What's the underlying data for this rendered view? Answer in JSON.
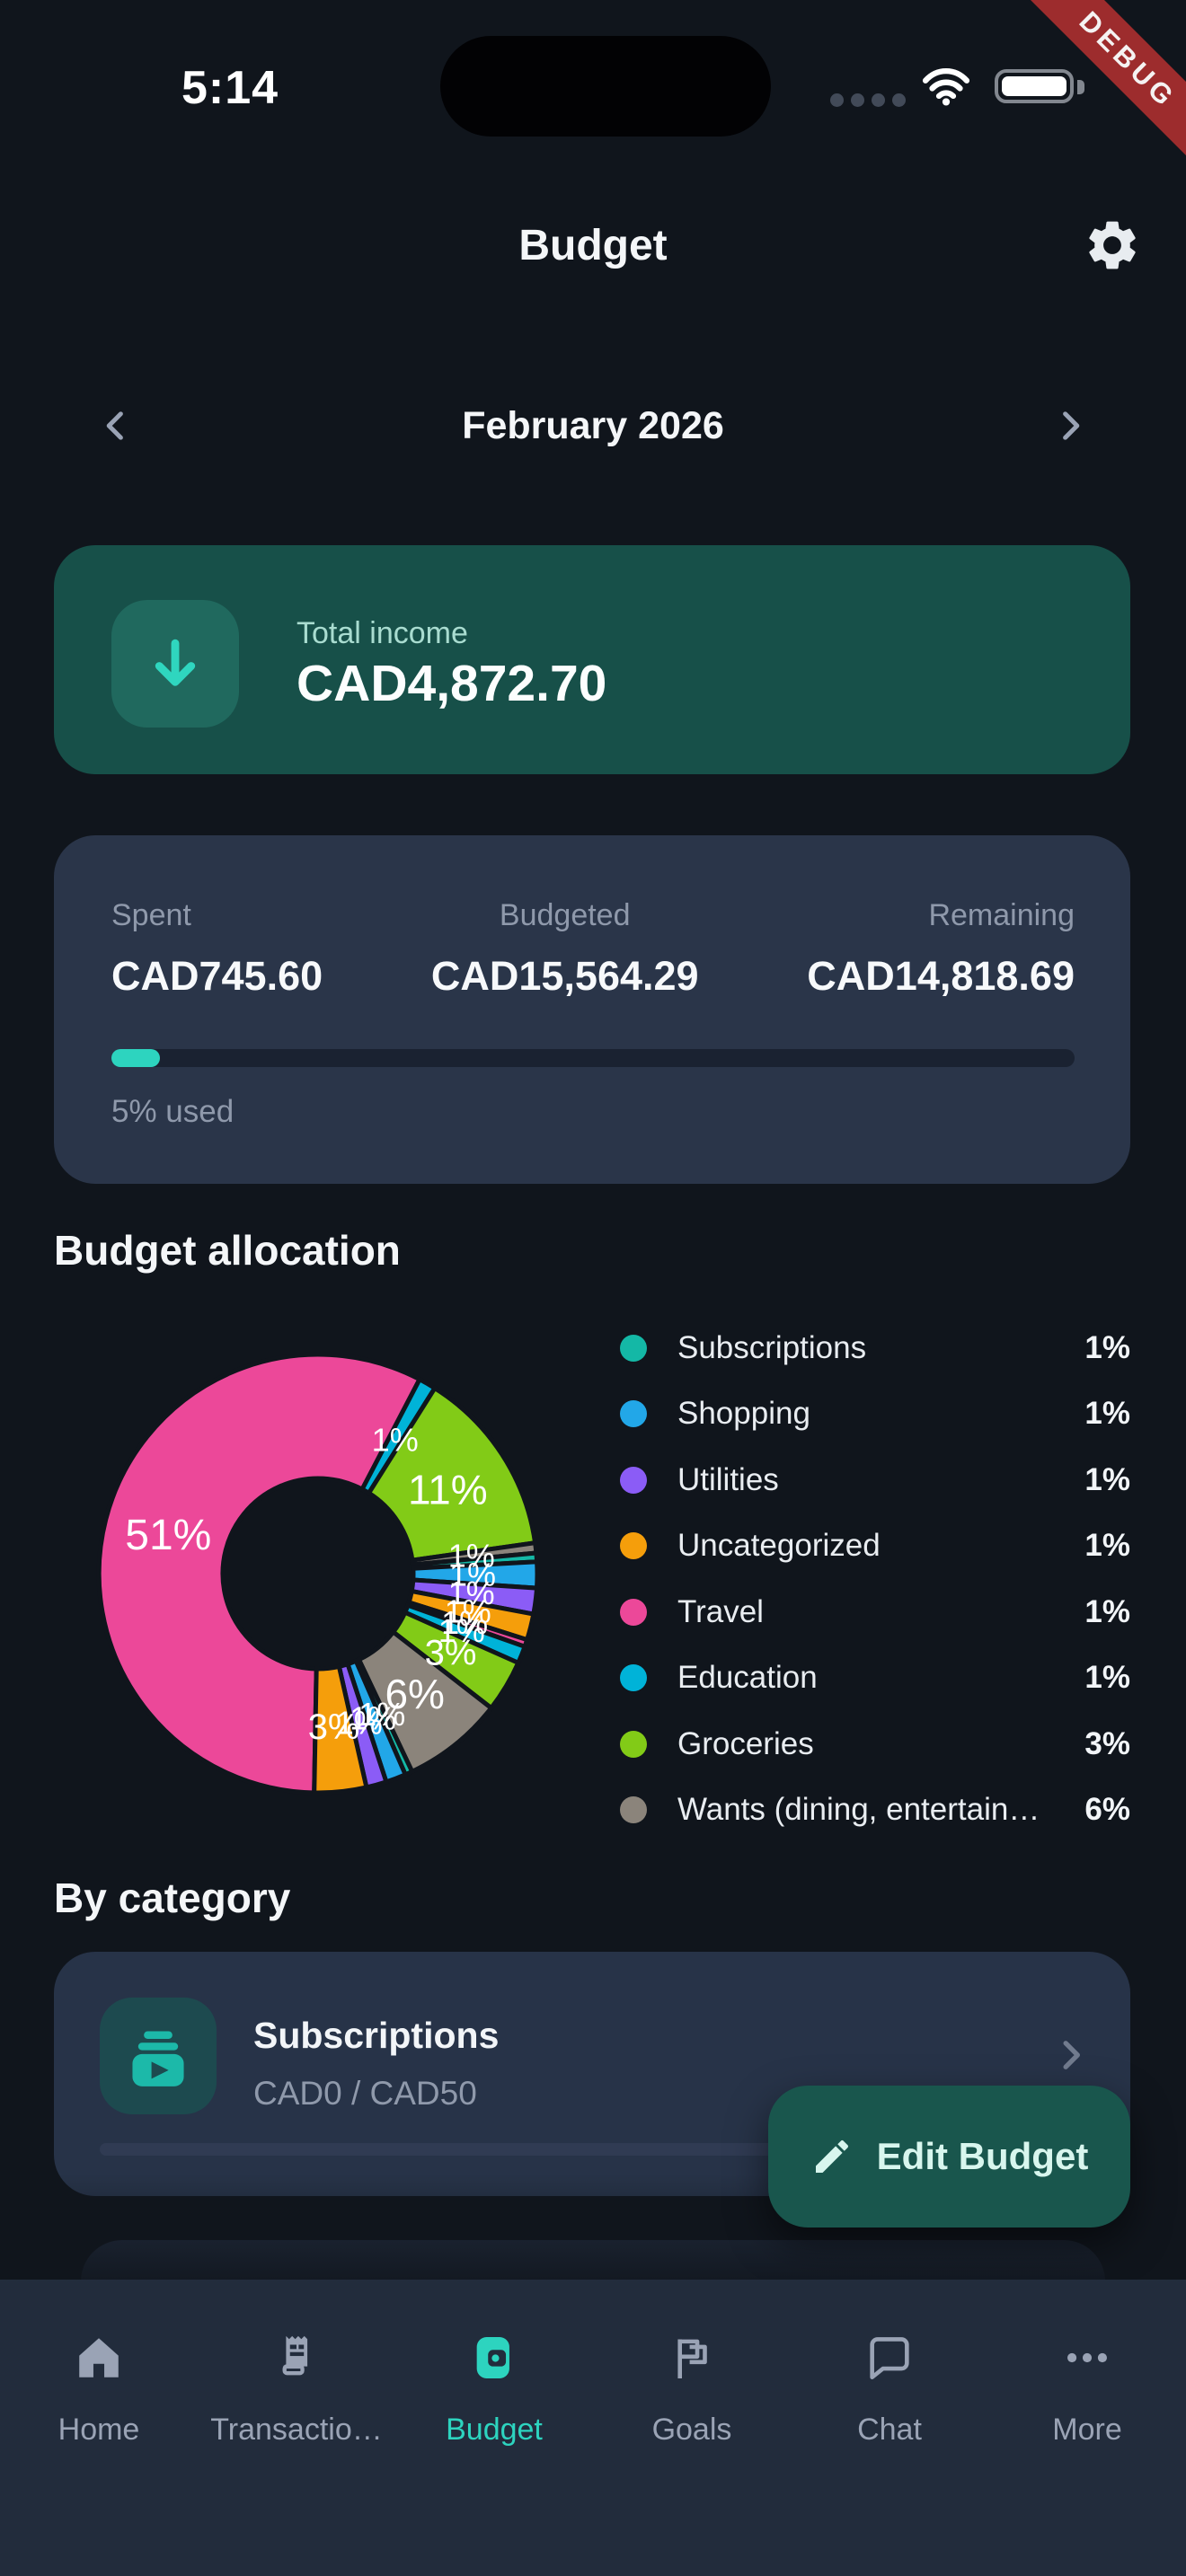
{
  "status_bar": {
    "time": "5:14",
    "cellular_icon": "cellular-signal-dots",
    "wifi_icon": "wifi-icon",
    "battery_icon": "battery-full",
    "debug_ribbon": "DEBUG"
  },
  "header": {
    "title": "Budget",
    "settings_icon": "gear-icon"
  },
  "month_nav": {
    "label": "February 2026",
    "prev_icon": "chevron-left",
    "next_icon": "chevron-right"
  },
  "income_card": {
    "icon": "arrow-down-icon",
    "label": "Total income",
    "value": "CAD4,872.70"
  },
  "summary_card": {
    "columns": [
      {
        "label": "Spent",
        "value": "CAD745.60"
      },
      {
        "label": "Budgeted",
        "value": "CAD15,564.29"
      },
      {
        "label": "Remaining",
        "value": "CAD14,818.69"
      }
    ],
    "progress_percent": 5,
    "caption": "5% used"
  },
  "allocation": {
    "heading": "Budget allocation",
    "legend": [
      {
        "name": "Subscriptions",
        "percent": "1%",
        "color": "#14b8a6"
      },
      {
        "name": "Shopping",
        "percent": "1%",
        "color": "#22a7e8"
      },
      {
        "name": "Utilities",
        "percent": "1%",
        "color": "#8b5cf6"
      },
      {
        "name": "Uncategorized",
        "percent": "1%",
        "color": "#f59e0b"
      },
      {
        "name": "Travel",
        "percent": "1%",
        "color": "#ec4899"
      },
      {
        "name": "Education",
        "percent": "1%",
        "color": "#00b3d8"
      },
      {
        "name": "Groceries",
        "percent": "3%",
        "color": "#82cb17"
      },
      {
        "name": "Wants (dining, entertain…",
        "percent": "6%",
        "color": "#8b847b"
      }
    ],
    "chart_data": {
      "type": "donut",
      "title": "Budget allocation",
      "legend_position": "right",
      "start_angle_deg": 181,
      "inner_radius_ratio": 0.43,
      "palette": {
        "teal": "#14b8a6",
        "blue": "#22a7e8",
        "purple": "#8b5cf6",
        "orange": "#f59e0b",
        "pink": "#ec4899",
        "cyan": "#00b3d8",
        "green": "#82cb17",
        "gray": "#8b847b"
      },
      "slices": [
        {
          "color": "pink",
          "label": "51%",
          "sweep": 54
        },
        {
          "color": "cyan",
          "label": "1%",
          "sweep": 1.2
        },
        {
          "color": "green",
          "label": "11%",
          "sweep": 13
        },
        {
          "color": "gray",
          "label": "1%",
          "sweep": 0.7
        },
        {
          "color": "teal",
          "label": "",
          "sweep": 0.6
        },
        {
          "color": "blue",
          "label": "1%",
          "sweep": 1.8
        },
        {
          "color": "purple",
          "label": "1%",
          "sweep": 1.8
        },
        {
          "color": "orange",
          "label": "1%",
          "sweep": 1.8
        },
        {
          "color": "pink",
          "label": "1%",
          "sweep": 0.5
        },
        {
          "color": "cyan",
          "label": "1%",
          "sweep": 1.2
        },
        {
          "color": "green",
          "label": "3%",
          "sweep": 3.6
        },
        {
          "color": "gray",
          "label": "6%",
          "sweep": 7
        },
        {
          "color": "teal",
          "label": "1%",
          "sweep": 0.5
        },
        {
          "color": "blue",
          "label": "1%",
          "sweep": 1.4
        },
        {
          "color": "purple",
          "label": "1%",
          "sweep": 1.4
        },
        {
          "color": "orange",
          "label": "3%",
          "sweep": 3.6
        }
      ]
    }
  },
  "by_category": {
    "heading": "By category",
    "items": [
      {
        "icon": "subscriptions-icon",
        "name": "Subscriptions",
        "amounts": "CAD0 / CAD50",
        "progress_percent": 0
      }
    ]
  },
  "edit_button": {
    "icon": "pencil-icon",
    "label": "Edit Budget"
  },
  "nav": {
    "items": [
      {
        "icon": "home-icon",
        "label": "Home",
        "active": false
      },
      {
        "icon": "receipt-icon",
        "label": "Transactio…",
        "active": false
      },
      {
        "icon": "wallet-icon",
        "label": "Budget",
        "active": true
      },
      {
        "icon": "flag-icon",
        "label": "Goals",
        "active": false
      },
      {
        "icon": "chat-icon",
        "label": "Chat",
        "active": false
      },
      {
        "icon": "ellipsis-icon",
        "label": "More",
        "active": false
      }
    ]
  },
  "colors": {
    "page_bg": "#10151c",
    "accent_teal": "#2dd4bf",
    "income_card_bg": "#175049",
    "summary_card_bg": "#2a3549",
    "category_card_bg": "#273348",
    "nav_bg": "#222c3c",
    "debug_red": "#9d2c2d",
    "muted_text": "#8f99ab"
  }
}
